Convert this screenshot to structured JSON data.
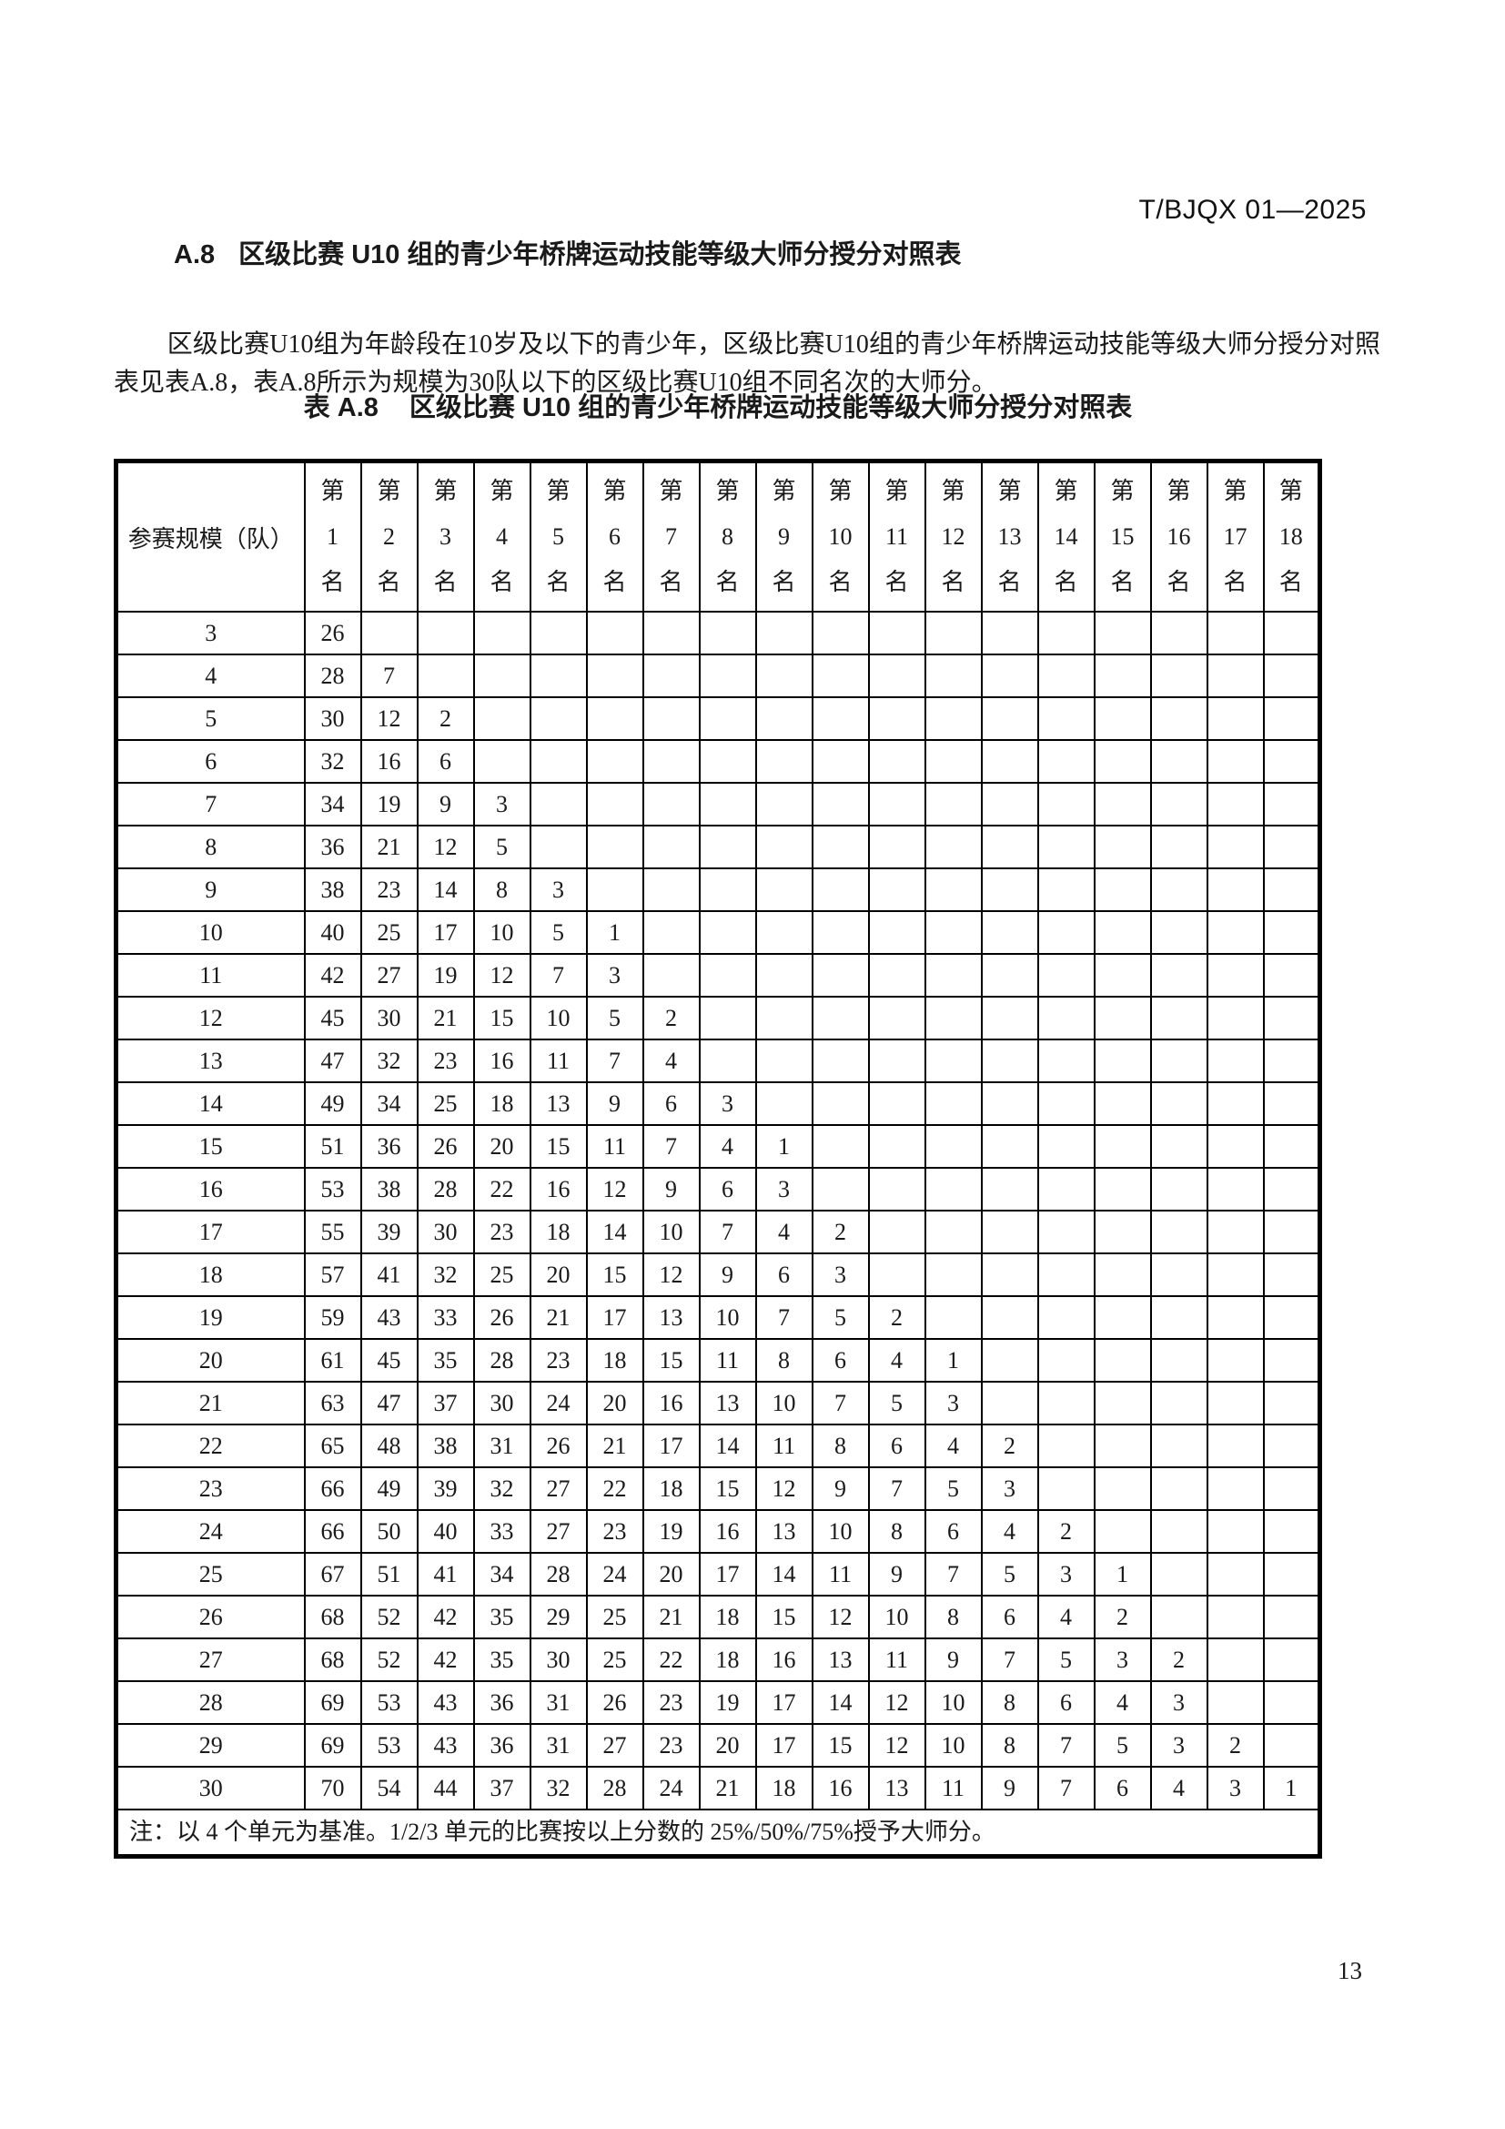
{
  "page": {
    "doc_code": "T/BJQX 01—2025",
    "page_number": "13"
  },
  "section": {
    "heading_label": "A.8",
    "heading_text": "区级比赛 U10 组的青少年桥牌运动技能等级大师分授分对照表",
    "paragraph": "区级比赛U10组为年龄段在10岁及以下的青少年，区级比赛U10组的青少年桥牌运动技能等级大师分授分对照表见表A.8，表A.8所示为规模为30队以下的区级比赛U10组不同名次的大师分。"
  },
  "table": {
    "caption_label": "表 A.8",
    "caption_text": "区级比赛 U10 组的青少年桥牌运动技能等级大师分授分对照表",
    "row_header_label": "参赛规模（队）",
    "col_prefix": "第",
    "col_suffix": "名",
    "columns": [
      "1",
      "2",
      "3",
      "4",
      "5",
      "6",
      "7",
      "8",
      "9",
      "10",
      "11",
      "12",
      "13",
      "14",
      "15",
      "16",
      "17",
      "18"
    ],
    "rows": [
      {
        "size": "3",
        "values": [
          26
        ]
      },
      {
        "size": "4",
        "values": [
          28,
          7
        ]
      },
      {
        "size": "5",
        "values": [
          30,
          12,
          2
        ]
      },
      {
        "size": "6",
        "values": [
          32,
          16,
          6
        ]
      },
      {
        "size": "7",
        "values": [
          34,
          19,
          9,
          3
        ]
      },
      {
        "size": "8",
        "values": [
          36,
          21,
          12,
          5
        ]
      },
      {
        "size": "9",
        "values": [
          38,
          23,
          14,
          8,
          3
        ]
      },
      {
        "size": "10",
        "values": [
          40,
          25,
          17,
          10,
          5,
          1
        ]
      },
      {
        "size": "11",
        "values": [
          42,
          27,
          19,
          12,
          7,
          3
        ]
      },
      {
        "size": "12",
        "values": [
          45,
          30,
          21,
          15,
          10,
          5,
          2
        ]
      },
      {
        "size": "13",
        "values": [
          47,
          32,
          23,
          16,
          11,
          7,
          4
        ]
      },
      {
        "size": "14",
        "values": [
          49,
          34,
          25,
          18,
          13,
          9,
          6,
          3
        ]
      },
      {
        "size": "15",
        "values": [
          51,
          36,
          26,
          20,
          15,
          11,
          7,
          4,
          1
        ]
      },
      {
        "size": "16",
        "values": [
          53,
          38,
          28,
          22,
          16,
          12,
          9,
          6,
          3
        ]
      },
      {
        "size": "17",
        "values": [
          55,
          39,
          30,
          23,
          18,
          14,
          10,
          7,
          4,
          2
        ]
      },
      {
        "size": "18",
        "values": [
          57,
          41,
          32,
          25,
          20,
          15,
          12,
          9,
          6,
          3
        ]
      },
      {
        "size": "19",
        "values": [
          59,
          43,
          33,
          26,
          21,
          17,
          13,
          10,
          7,
          5,
          2
        ]
      },
      {
        "size": "20",
        "values": [
          61,
          45,
          35,
          28,
          23,
          18,
          15,
          11,
          8,
          6,
          4,
          1
        ]
      },
      {
        "size": "21",
        "values": [
          63,
          47,
          37,
          30,
          24,
          20,
          16,
          13,
          10,
          7,
          5,
          3
        ]
      },
      {
        "size": "22",
        "values": [
          65,
          48,
          38,
          31,
          26,
          21,
          17,
          14,
          11,
          8,
          6,
          4,
          2
        ]
      },
      {
        "size": "23",
        "values": [
          66,
          49,
          39,
          32,
          27,
          22,
          18,
          15,
          12,
          9,
          7,
          5,
          3
        ]
      },
      {
        "size": "24",
        "values": [
          66,
          50,
          40,
          33,
          27,
          23,
          19,
          16,
          13,
          10,
          8,
          6,
          4,
          2
        ]
      },
      {
        "size": "25",
        "values": [
          67,
          51,
          41,
          34,
          28,
          24,
          20,
          17,
          14,
          11,
          9,
          7,
          5,
          3,
          1
        ]
      },
      {
        "size": "26",
        "values": [
          68,
          52,
          42,
          35,
          29,
          25,
          21,
          18,
          15,
          12,
          10,
          8,
          6,
          4,
          2
        ]
      },
      {
        "size": "27",
        "values": [
          68,
          52,
          42,
          35,
          30,
          25,
          22,
          18,
          16,
          13,
          11,
          9,
          7,
          5,
          3,
          2
        ]
      },
      {
        "size": "28",
        "values": [
          69,
          53,
          43,
          36,
          31,
          26,
          23,
          19,
          17,
          14,
          12,
          10,
          8,
          6,
          4,
          3
        ]
      },
      {
        "size": "29",
        "values": [
          69,
          53,
          43,
          36,
          31,
          27,
          23,
          20,
          17,
          15,
          12,
          10,
          8,
          7,
          5,
          3,
          2
        ]
      },
      {
        "size": "30",
        "values": [
          70,
          54,
          44,
          37,
          32,
          28,
          24,
          21,
          18,
          16,
          13,
          11,
          9,
          7,
          6,
          4,
          3,
          1
        ]
      }
    ],
    "note": "注：以 4 个单元为基准。1/2/3 单元的比赛按以上分数的 25%/50%/75%授予大师分。"
  }
}
